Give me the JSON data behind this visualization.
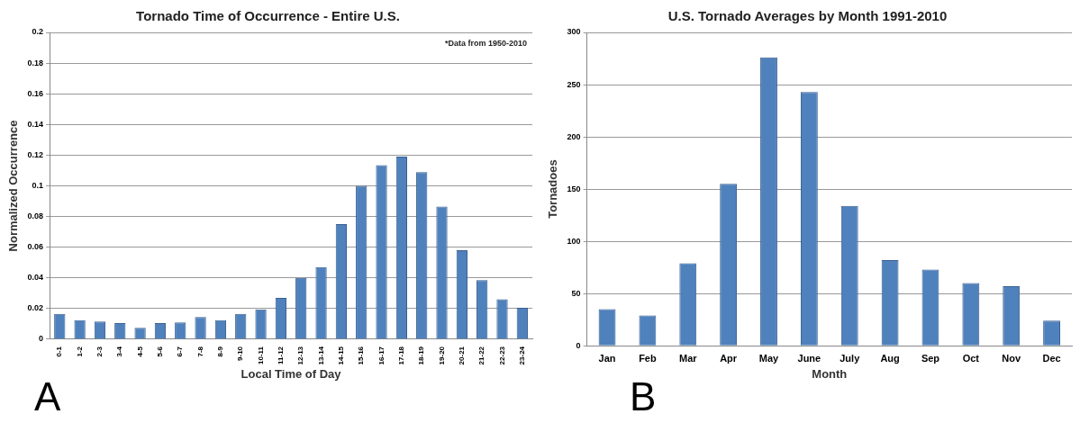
{
  "chart_data": [
    {
      "type": "bar",
      "title": "Tornado Time of Occurrence - Entire U.S.",
      "xlabel": "Local Time of Day",
      "ylabel": "Normalized Occurrence",
      "categories": [
        "0-1",
        "1-2",
        "2-3",
        "3-4",
        "4-5",
        "5-6",
        "6-7",
        "7-8",
        "8-9",
        "9-10",
        "10-11",
        "11-12",
        "12-13",
        "13-14",
        "14-15",
        "15-16",
        "16-17",
        "17-18",
        "18-19",
        "19-20",
        "20-21",
        "21-22",
        "22-23",
        "23-24"
      ],
      "values": [
        0.0165,
        0.0125,
        0.0115,
        0.0105,
        0.0075,
        0.0105,
        0.011,
        0.0145,
        0.0125,
        0.0165,
        0.0195,
        0.027,
        0.04,
        0.047,
        0.075,
        0.1,
        0.1135,
        0.119,
        0.109,
        0.0865,
        0.058,
        0.0385,
        0.026,
        0.0205
      ],
      "color": "#4f81bd",
      "ylim": [
        0,
        0.2
      ],
      "yticks": [
        0,
        0.02,
        0.04,
        0.06,
        0.08,
        0.1,
        0.12,
        0.14,
        0.16,
        0.18,
        0.2
      ],
      "grid": "y",
      "legend": false,
      "annotations": [
        "*Data from 1950-2010",
        "A"
      ]
    },
    {
      "type": "bar",
      "title": "U.S. Tornado Averages by Month 1991-2010",
      "xlabel": "Month",
      "ylabel": "Tornadoes",
      "categories": [
        "Jan",
        "Feb",
        "Mar",
        "Apr",
        "May",
        "June",
        "July",
        "Aug",
        "Sep",
        "Oct",
        "Nov",
        "Dec"
      ],
      "values": [
        35,
        29,
        79,
        155,
        276,
        243,
        134,
        82,
        73,
        60,
        57,
        24
      ],
      "color": "#4f81bd",
      "ylim": [
        0,
        300
      ],
      "yticks": [
        0,
        50,
        100,
        150,
        200,
        250,
        300
      ],
      "grid": "y",
      "legend": false,
      "annotations": [
        "B"
      ]
    }
  ]
}
